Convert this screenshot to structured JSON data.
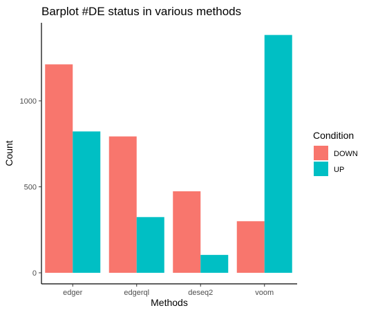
{
  "chart_data": {
    "type": "bar",
    "title": "Barplot #DE status in various methods",
    "xlabel": "Methods",
    "ylabel": "Count",
    "categories": [
      "edger",
      "edgerql",
      "deseq2",
      "voom"
    ],
    "series": [
      {
        "name": "DOWN",
        "color": "#F8766D",
        "values": [
          1212,
          793,
          474,
          300
        ]
      },
      {
        "name": "UP",
        "color": "#00BFC4",
        "values": [
          822,
          324,
          104,
          1383
        ]
      }
    ],
    "ylim": [
      0,
      1400
    ],
    "yticks": [
      0,
      500,
      1000
    ],
    "legend": {
      "title": "Condition",
      "position": "right"
    },
    "grid": false
  }
}
